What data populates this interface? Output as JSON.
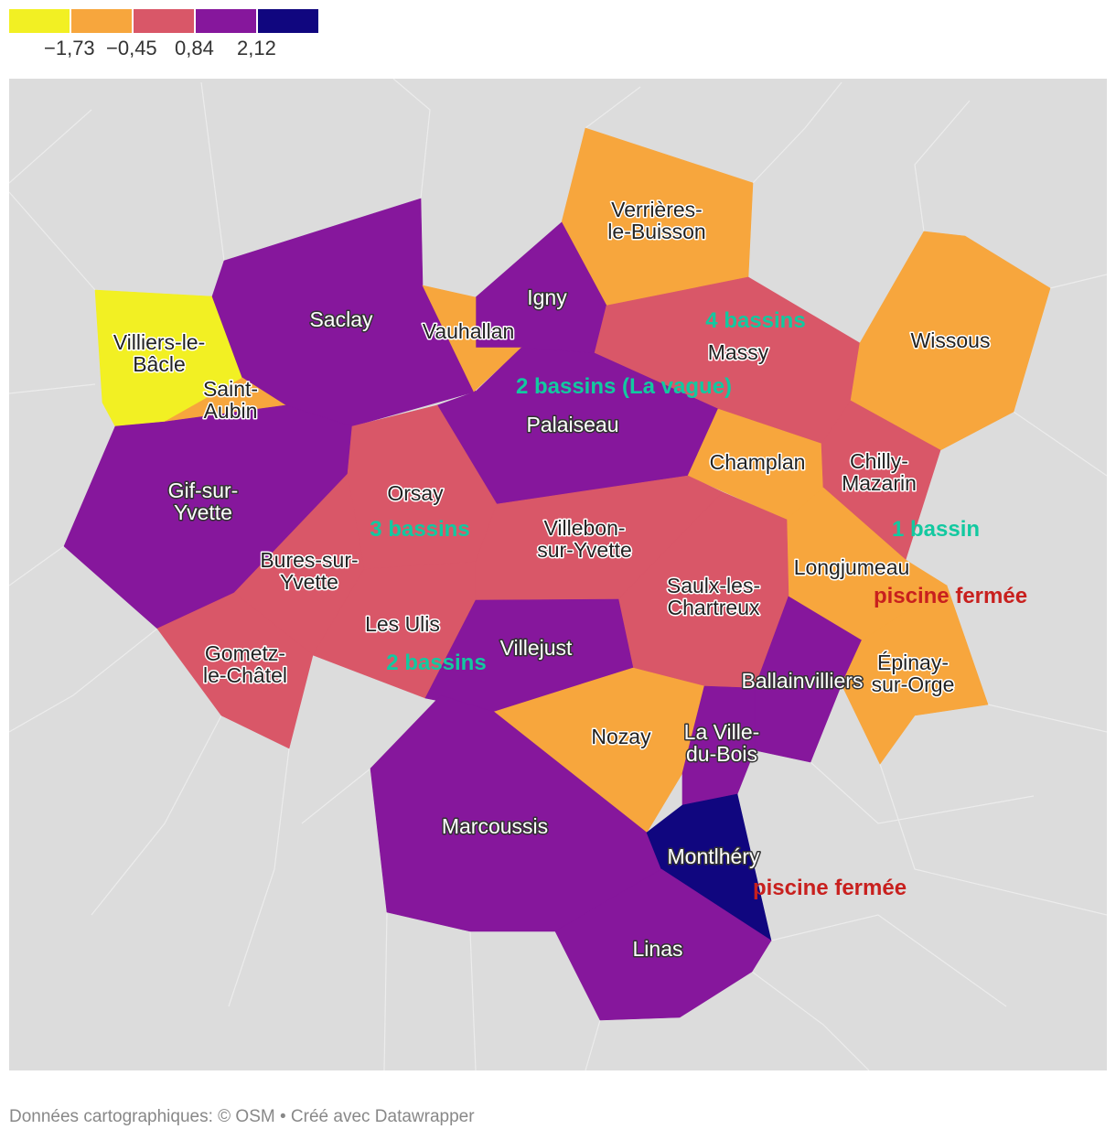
{
  "legend": {
    "colors": [
      "#f2f023",
      "#f7a63d",
      "#d95768",
      "#86179c",
      "#10067f"
    ],
    "ticks": [
      "−1,73",
      "−0,45",
      "0,84",
      "2,12"
    ]
  },
  "map": {
    "background_color": "#dcdcdc",
    "regions": [
      {
        "name": "Verrières-le-Buisson",
        "label": [
          "Verrières-",
          "le-Buisson"
        ],
        "class": 1
      },
      {
        "name": "Igny",
        "label": [
          "Igny"
        ],
        "class": 3
      },
      {
        "name": "Massy",
        "label": [
          "Massy"
        ],
        "class": 2
      },
      {
        "name": "Wissous",
        "label": [
          "Wissous"
        ],
        "class": 1
      },
      {
        "name": "Villiers-le-Bâcle",
        "label": [
          "Villiers-le-",
          "Bâcle"
        ],
        "class": 0
      },
      {
        "name": "Saclay",
        "label": [
          "Saclay"
        ],
        "class": 3
      },
      {
        "name": "Vauhallan",
        "label": [
          "Vauhallan"
        ],
        "class": 1
      },
      {
        "name": "Saint-Aubin",
        "label": [
          "Saint-",
          "Aubin"
        ],
        "class": 1
      },
      {
        "name": "Palaiseau",
        "label": [
          "Palaiseau"
        ],
        "class": 3
      },
      {
        "name": "Champlan",
        "label": [
          "Champlan"
        ],
        "class": 1
      },
      {
        "name": "Chilly-Mazarin",
        "label": [
          "Chilly-",
          "Mazarin"
        ],
        "class": 2
      },
      {
        "name": "Gif-sur-Yvette",
        "label": [
          "Gif-sur-",
          "Yvette"
        ],
        "class": 3
      },
      {
        "name": "Orsay",
        "label": [
          "Orsay"
        ],
        "class": 2
      },
      {
        "name": "Villebon-sur-Yvette",
        "label": [
          "Villebon-",
          "sur-Yvette"
        ],
        "class": 2
      },
      {
        "name": "Longjumeau",
        "label": [
          "Longjumeau"
        ],
        "class": 1
      },
      {
        "name": "Bures-sur-Yvette",
        "label": [
          "Bures-sur-",
          "Yvette"
        ],
        "class": 2
      },
      {
        "name": "Les Ulis",
        "label": [
          "Les Ulis"
        ],
        "class": 2
      },
      {
        "name": "Saulx-les-Chartreux",
        "label": [
          "Saulx-les-",
          "Chartreux"
        ],
        "class": 2
      },
      {
        "name": "Gometz-le-Châtel",
        "label": [
          "Gometz-",
          "le-Châtel"
        ],
        "class": 2
      },
      {
        "name": "Villejust",
        "label": [
          "Villejust"
        ],
        "class": 3
      },
      {
        "name": "Ballainvilliers",
        "label": [
          "Ballainvilliers"
        ],
        "class": 3
      },
      {
        "name": "Épinay-sur-Orge",
        "label": [
          "Épinay-",
          "sur-Orge"
        ],
        "class": 1
      },
      {
        "name": "Nozay",
        "label": [
          "Nozay"
        ],
        "class": 1
      },
      {
        "name": "La Ville-du-Bois",
        "label": [
          "La Ville-",
          "du-Bois"
        ],
        "class": 3
      },
      {
        "name": "Marcoussis",
        "label": [
          "Marcoussis"
        ],
        "class": 3
      },
      {
        "name": "Montlhéry",
        "label": [
          "Montlhéry"
        ],
        "class": 4
      },
      {
        "name": "Linas",
        "label": [
          "Linas"
        ],
        "class": 3
      }
    ],
    "annotations": [
      {
        "text": "4 bassins",
        "color": "green"
      },
      {
        "text": "2 bassins (La vague)",
        "color": "green"
      },
      {
        "text": "3 bassins",
        "color": "green"
      },
      {
        "text": "1 bassin",
        "color": "green"
      },
      {
        "text": "2 bassins",
        "color": "green"
      },
      {
        "text": "piscine fermée",
        "color": "red"
      },
      {
        "text": "piscine fermée",
        "color": "red"
      }
    ]
  },
  "footer": {
    "credit": "Données cartographiques: © OSM  • Créé avec Datawrapper"
  }
}
